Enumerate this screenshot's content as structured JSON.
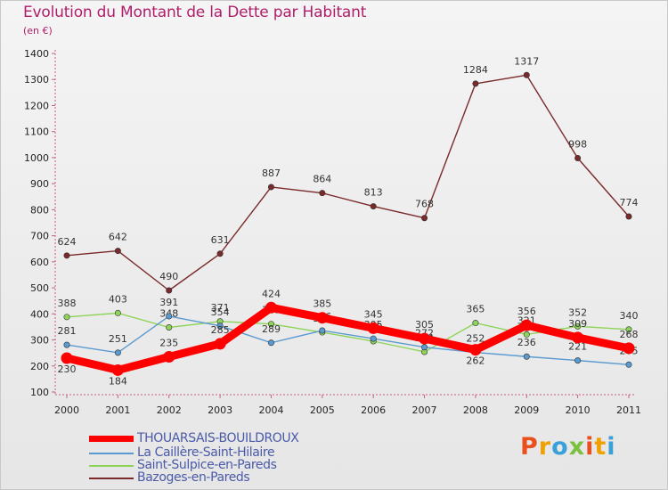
{
  "title": "Evolution du Montant de la Dette par Habitant",
  "unit": "(en €)",
  "logo": {
    "text": "Proxiti",
    "colors": [
      "#e8501e",
      "#f0a000",
      "#3aa0d8",
      "#7cc040",
      "#e8501e",
      "#f0a000",
      "#3aa0d8"
    ]
  },
  "chart_data": {
    "type": "line",
    "title": "Evolution du Montant de la Dette par Habitant",
    "ylabel": "(en €)",
    "xlabel": "",
    "ylim": [
      100,
      1400
    ],
    "y_ticks": [
      100,
      200,
      300,
      400,
      500,
      600,
      700,
      800,
      900,
      1000,
      1100,
      1200,
      1300,
      1400
    ],
    "x": [
      "2000",
      "2001",
      "2002",
      "2003",
      "2004",
      "2005",
      "2006",
      "2007",
      "2008",
      "2009",
      "2010",
      "2011"
    ],
    "grid": false,
    "legend": "bottom-left",
    "series": [
      {
        "name": "THOUARSAIS-BOUILDROUX",
        "color": "#ff0000",
        "values": [
          230,
          184,
          235,
          285,
          424,
          385,
          345,
          305,
          262,
          356,
          309,
          268
        ]
      },
      {
        "name": "La Caillère-Saint-Hilaire",
        "color": "#5b9ad0",
        "values": [
          281,
          251,
          391,
          354,
          289,
          336,
          305,
          272,
          252,
          236,
          221,
          205
        ]
      },
      {
        "name": "Saint-Sulpice-en-Pareds",
        "color": "#8fd45a",
        "values": [
          388,
          403,
          348,
          371,
          361,
          329,
          295,
          254,
          365,
          321,
          352,
          340
        ]
      },
      {
        "name": "Bazoges-en-Pareds",
        "color": "#7a2a2a",
        "values": [
          624,
          642,
          490,
          631,
          887,
          864,
          813,
          768,
          1284,
          1317,
          998,
          774
        ]
      }
    ]
  }
}
